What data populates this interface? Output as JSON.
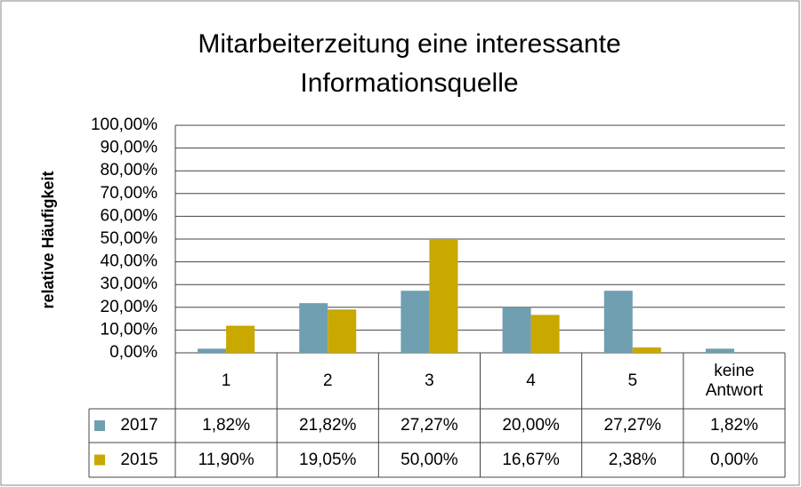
{
  "chart_data": {
    "type": "bar",
    "title": "Mitarbeiterzeitung eine interessante Informationsquelle",
    "y_label": "relative Häufigkeit",
    "categories": [
      "1",
      "2",
      "3",
      "4",
      "5",
      "keine Antwort"
    ],
    "series": [
      {
        "name": "2017",
        "color": "#6f9fb0",
        "values": [
          1.82,
          21.82,
          27.27,
          20.0,
          27.27,
          1.82
        ],
        "value_labels": [
          "1,82%",
          "21,82%",
          "27,27%",
          "20,00%",
          "27,27%",
          "1,82%"
        ]
      },
      {
        "name": "2015",
        "color": "#c9a800",
        "values": [
          11.9,
          19.05,
          50.0,
          16.67,
          2.38,
          0.0
        ],
        "value_labels": [
          "11,90%",
          "19,05%",
          "50,00%",
          "16,67%",
          "2,38%",
          "0,00%"
        ]
      }
    ],
    "ylim": [
      0,
      100
    ],
    "yticks": [
      {
        "value": 0,
        "label": "0,00%"
      },
      {
        "value": 10,
        "label": "10,00%"
      },
      {
        "value": 20,
        "label": "20,00%"
      },
      {
        "value": 30,
        "label": "30,00%"
      },
      {
        "value": 40,
        "label": "40,00%"
      },
      {
        "value": 50,
        "label": "50,00%"
      },
      {
        "value": 60,
        "label": "60,00%"
      },
      {
        "value": 70,
        "label": "70,00%"
      },
      {
        "value": 80,
        "label": "80,00%"
      },
      {
        "value": 90,
        "label": "90,00%"
      },
      {
        "value": 100,
        "label": "100,00%"
      }
    ],
    "grid": true
  }
}
